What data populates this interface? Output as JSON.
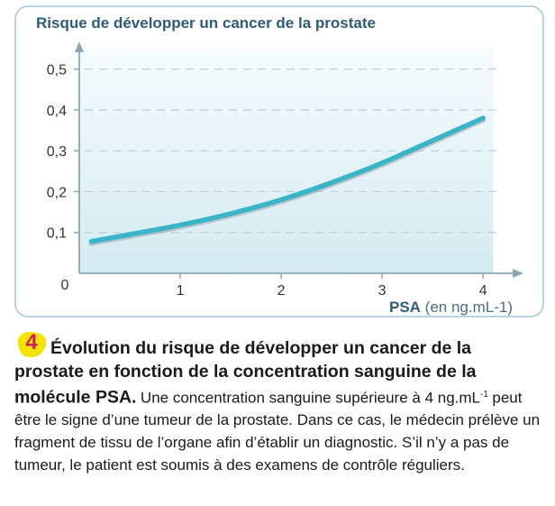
{
  "figure": {
    "number": "4",
    "caption_bold": "Évolution du risque de développer un cancer de la prostate en fonction de la concentration sanguine de la molécule PSA.",
    "caption_text": "Une concentration sanguine supérieure à 4 ng.mL",
    "caption_sup": "-1",
    "caption_text_after": "peut être le signe d’une tumeur de la prostate. Dans ce cas, le médecin prélève un fragment de tissu de l’organe afin d’établir un diagnostic. S’il n’y a pas de tumeur, le patient est soumis à des examens de contrôle réguliers."
  },
  "colors": {
    "panel_border": "#9ec5d8",
    "plot_fill_top": "#f6fbfd",
    "plot_fill_bottom": "#d4ebf1",
    "curve": "#3cb4c8",
    "curve_shadow": "#9aa8ad",
    "axis": "#8aa6b5",
    "grid": "#b9cfd9",
    "title": "#2f5b7a",
    "tick_text": "#333333",
    "badge_fill": "#f4e300",
    "badge_text": "#d01f60"
  },
  "chart_data": {
    "type": "line",
    "title": "Risque de développer un cancer de la prostate",
    "xlabel_bold": "PSA",
    "xlabel_unit": "(en ng.mL-1)",
    "ylabel": "",
    "xlim": [
      0,
      4.4
    ],
    "ylim": [
      0,
      0.55
    ],
    "x_ticks": [
      1,
      2,
      3,
      4
    ],
    "x_tick_labels": [
      "1",
      "2",
      "3",
      "4"
    ],
    "y_ticks": [
      0.1,
      0.2,
      0.3,
      0.4,
      0.5
    ],
    "y_tick_labels": [
      "0,1",
      "0,2",
      "0,3",
      "0,4",
      "0,5"
    ],
    "origin_label": "0",
    "grid": "horizontal dashed",
    "series": [
      {
        "x": [
          0.12,
          0.5,
          1.0,
          1.5,
          2.0,
          2.5,
          3.0,
          3.5,
          4.0
        ],
        "values": [
          0.078,
          0.095,
          0.118,
          0.146,
          0.18,
          0.222,
          0.27,
          0.325,
          0.38
        ]
      }
    ]
  }
}
